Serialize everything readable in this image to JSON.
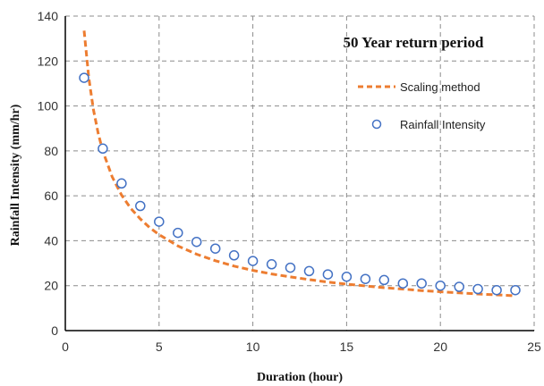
{
  "chart_data": {
    "type": "line",
    "title": "50 Year return period",
    "xlabel": "Duration (hour)",
    "ylabel": "Rainfall Intensity (mm/hr)",
    "xlim": [
      0,
      25
    ],
    "ylim": [
      0,
      140
    ],
    "xticks": [
      0,
      5,
      10,
      15,
      20,
      25
    ],
    "yticks": [
      0,
      20,
      40,
      60,
      80,
      100,
      120,
      140
    ],
    "grid": true,
    "legend_position": "top-right",
    "colors": {
      "scaling": "#ed7d31",
      "intensity": "#4472c4"
    },
    "series": [
      {
        "name": "Scaling method",
        "style": "dashed-line",
        "x": [
          1,
          1.25,
          1.5,
          1.75,
          2,
          2.5,
          3,
          3.5,
          4,
          4.5,
          5,
          6,
          7,
          8,
          9,
          10,
          11,
          12,
          13,
          14,
          15,
          16,
          17,
          18,
          19,
          20,
          21,
          22,
          23,
          24
        ],
        "y": [
          133.5,
          112.6,
          98.4,
          87.9,
          79.9,
          68.4,
          60.3,
          54.3,
          49.7,
          45.8,
          42.7,
          37.7,
          34.0,
          31.1,
          28.7,
          26.8,
          25.2,
          23.9,
          22.7,
          21.6,
          20.7,
          19.9,
          19.1,
          18.5,
          17.8,
          17.3,
          16.8,
          16.3,
          15.9,
          15.5
        ]
      },
      {
        "name": "Rainfall Intensity",
        "style": "hollow-circle-markers",
        "x": [
          1,
          2,
          3,
          4,
          5,
          6,
          7,
          8,
          9,
          10,
          11,
          12,
          13,
          14,
          15,
          16,
          17,
          18,
          19,
          20,
          21,
          22,
          23,
          24
        ],
        "y": [
          112.5,
          81.0,
          65.5,
          55.5,
          48.5,
          43.5,
          39.5,
          36.5,
          33.5,
          31.0,
          29.5,
          28.0,
          26.5,
          25.0,
          24.0,
          23.0,
          22.5,
          21.0,
          21.0,
          20.0,
          19.5,
          18.5,
          18.0,
          18.0
        ]
      }
    ]
  }
}
